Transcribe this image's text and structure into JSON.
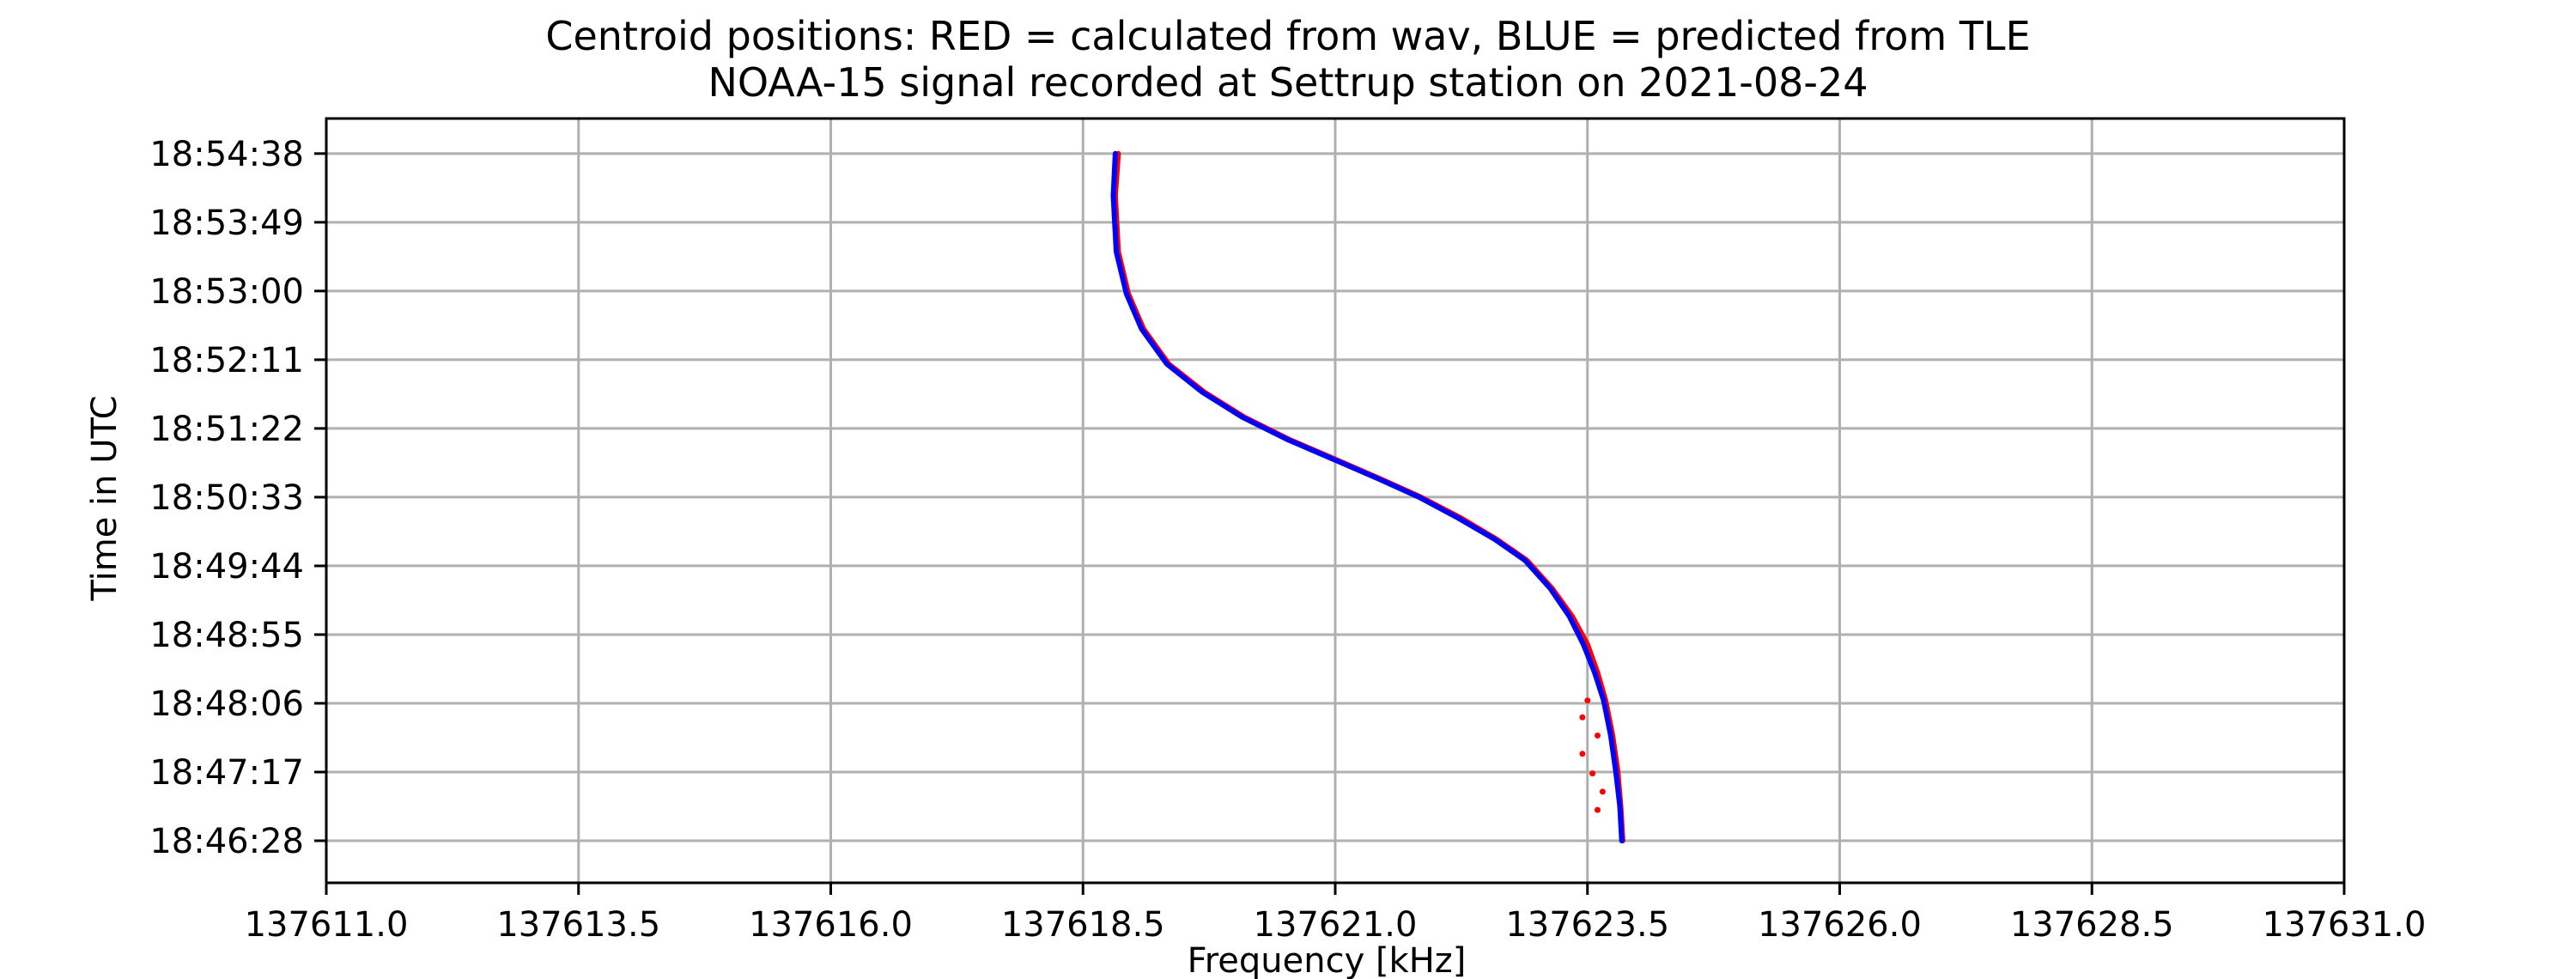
{
  "chart_data": {
    "type": "scatter",
    "title_line1": "Centroid positions: RED = calculated from wav, BLUE = predicted from TLE",
    "title_line2": "NOAA-15 signal recorded at Settrup station on 2021-08-24",
    "xlabel": "Frequency [kHz]",
    "ylabel": "Time in UTC",
    "xlim": [
      137611.0,
      137631.0
    ],
    "ylim_seconds": [
      -30,
      515
    ],
    "x_ticks": [
      137611.0,
      137613.5,
      137616.0,
      137618.5,
      137621.0,
      137623.5,
      137626.0,
      137628.5,
      137631.0
    ],
    "x_tick_labels": [
      "137611.0",
      "137613.5",
      "137616.0",
      "137618.5",
      "137621.0",
      "137623.5",
      "137626.0",
      "137628.5",
      "137631.0"
    ],
    "y_ticks_seconds": [
      0,
      49,
      98,
      147,
      196,
      245,
      294,
      343,
      392,
      441,
      490
    ],
    "y_tick_labels": [
      "18:46:28",
      "18:47:17",
      "18:48:06",
      "18:48:55",
      "18:49:44",
      "18:50:33",
      "18:51:22",
      "18:52:11",
      "18:53:00",
      "18:53:49",
      "18:54:38"
    ],
    "grid": true,
    "series": [
      {
        "name": "RED",
        "color": "#ff0000",
        "points": [
          [
            137623.85,
            0
          ],
          [
            137623.83,
            25
          ],
          [
            137623.8,
            50
          ],
          [
            137623.75,
            75
          ],
          [
            137623.68,
            100
          ],
          [
            137623.6,
            120
          ],
          [
            137623.5,
            140
          ],
          [
            137623.35,
            160
          ],
          [
            137623.15,
            180
          ],
          [
            137622.9,
            200
          ],
          [
            137622.6,
            215
          ],
          [
            137622.25,
            230
          ],
          [
            137621.85,
            245
          ],
          [
            137621.45,
            258
          ],
          [
            137621.0,
            272
          ],
          [
            137620.55,
            286
          ],
          [
            137620.1,
            302
          ],
          [
            137619.7,
            320
          ],
          [
            137619.35,
            340
          ],
          [
            137619.1,
            365
          ],
          [
            137618.95,
            390
          ],
          [
            137618.85,
            420
          ],
          [
            137618.82,
            460
          ],
          [
            137618.85,
            490
          ],
          [
            137623.5,
            100
          ],
          [
            137623.45,
            88
          ],
          [
            137623.6,
            75
          ],
          [
            137623.45,
            62
          ],
          [
            137623.55,
            48
          ],
          [
            137623.65,
            35
          ],
          [
            137623.6,
            22
          ]
        ]
      },
      {
        "name": "BLUE",
        "color": "#0000ff",
        "points": [
          [
            137623.84,
            0
          ],
          [
            137623.82,
            25
          ],
          [
            137623.78,
            50
          ],
          [
            137623.73,
            75
          ],
          [
            137623.66,
            100
          ],
          [
            137623.57,
            120
          ],
          [
            137623.46,
            140
          ],
          [
            137623.32,
            160
          ],
          [
            137623.13,
            180
          ],
          [
            137622.88,
            200
          ],
          [
            137622.58,
            215
          ],
          [
            137622.22,
            230
          ],
          [
            137621.83,
            245
          ],
          [
            137621.43,
            258
          ],
          [
            137620.98,
            272
          ],
          [
            137620.53,
            286
          ],
          [
            137620.08,
            302
          ],
          [
            137619.68,
            320
          ],
          [
            137619.33,
            340
          ],
          [
            137619.08,
            365
          ],
          [
            137618.93,
            390
          ],
          [
            137618.83,
            420
          ],
          [
            137618.8,
            460
          ],
          [
            137618.82,
            490
          ]
        ]
      }
    ]
  }
}
